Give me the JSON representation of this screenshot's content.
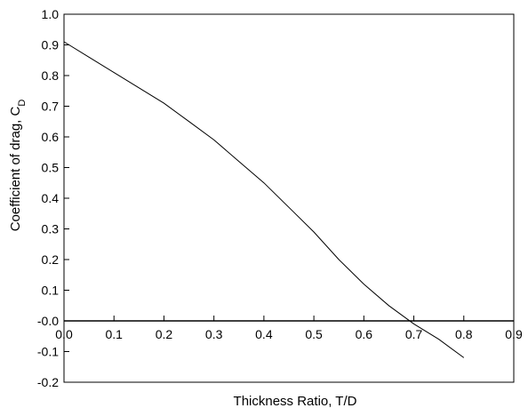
{
  "chart_data": {
    "type": "line",
    "xlabel": "Thickness Ratio, T/D",
    "ylabel_main": "Coefficient of drag, C",
    "ylabel_subscript": "D",
    "xlim": [
      0,
      0.9
    ],
    "ylim": [
      -0.2,
      1.0
    ],
    "xticks": [
      0,
      0.1,
      0.2,
      0.3,
      0.4,
      0.5,
      0.6,
      0.7,
      0.8,
      0.9
    ],
    "xtick_labels": [
      "0.0",
      "0.1",
      "0.2",
      "0.3",
      "0.4",
      "0.5",
      "0.6",
      "0.7",
      "0.8",
      "0.9"
    ],
    "yticks": [
      -0.2,
      -0.1,
      0.0,
      0.1,
      0.2,
      0.3,
      0.4,
      0.5,
      0.6,
      0.7,
      0.8,
      0.9,
      1.0
    ],
    "ytick_labels": [
      "-0.2",
      "-0.1",
      "-0.0",
      "0.1",
      "0.2",
      "0.3",
      "0.4",
      "0.5",
      "0.6",
      "0.7",
      "0.8",
      "0.9",
      "1.0"
    ],
    "zero_line": true,
    "grid": false,
    "series": [
      {
        "x": [
          0.0,
          0.05,
          0.1,
          0.15,
          0.2,
          0.25,
          0.3,
          0.35,
          0.4,
          0.45,
          0.5,
          0.55,
          0.6,
          0.65,
          0.7,
          0.75,
          0.8
        ],
        "y": [
          0.91,
          0.86,
          0.81,
          0.76,
          0.71,
          0.65,
          0.59,
          0.52,
          0.45,
          0.37,
          0.29,
          0.2,
          0.12,
          0.05,
          -0.01,
          -0.06,
          -0.12
        ],
        "color": "#000000"
      }
    ]
  }
}
